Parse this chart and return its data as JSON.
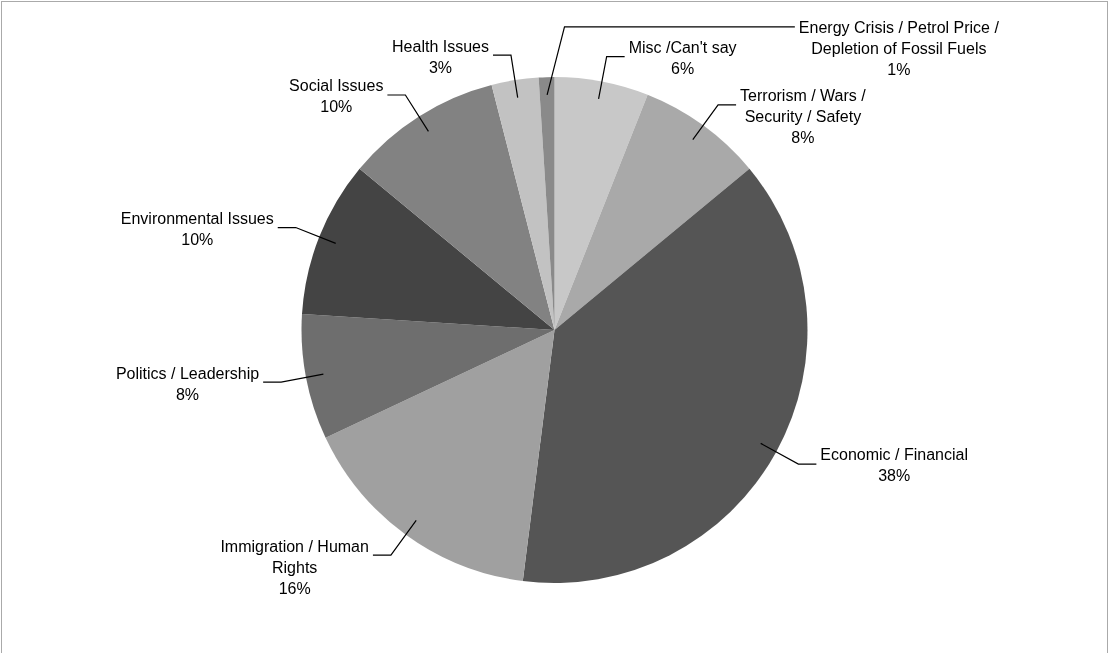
{
  "chart_data": {
    "type": "pie",
    "categories": [
      "Misc /Can't say",
      "Terrorism / Wars / Security / Safety",
      "Economic / Financial",
      "Immigration / Human Rights",
      "Politics / Leadership",
      "Environmental Issues",
      "Social Issues",
      "Health Issues",
      "Energy Crisis / Petrol Price / Depletion of Fossil Fuels"
    ],
    "values": [
      6,
      8,
      38,
      16,
      8,
      10,
      10,
      3,
      1
    ],
    "value_labels": [
      "6%",
      "8%",
      "38%",
      "16%",
      "8%",
      "10%",
      "10%",
      "3%",
      "1%"
    ],
    "colors": [
      "#c8c8c8",
      "#a9a9a9",
      "#555555",
      "#a0a0a0",
      "#6e6e6e",
      "#444444",
      "#828282",
      "#c2c2c2",
      "#8a8a8a"
    ],
    "legend": false
  }
}
